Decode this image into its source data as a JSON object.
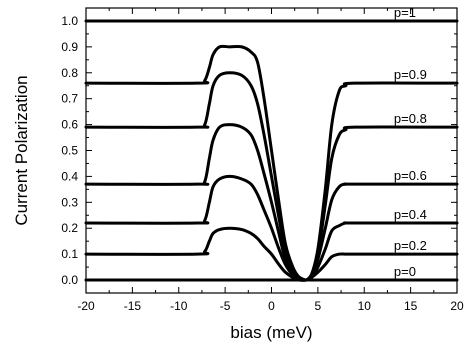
{
  "chart_data": {
    "type": "line",
    "title": "",
    "xlabel": "bias (meV)",
    "ylabel": "Current Polarization",
    "xlim": [
      -20,
      20
    ],
    "ylim": [
      -0.05,
      1.05
    ],
    "xticks": [
      -20,
      -15,
      -10,
      -5,
      0,
      5,
      10,
      15,
      20
    ],
    "xtick_labels": [
      "-20",
      "-15",
      "-10",
      "-5",
      "0",
      "5",
      "10",
      "15",
      "20"
    ],
    "yticks": [
      0.0,
      0.1,
      0.2,
      0.3,
      0.4,
      0.5,
      0.6,
      0.7,
      0.8,
      0.9,
      1.0
    ],
    "ytick_labels": [
      "0.0",
      "0.1",
      "0.2",
      "0.3",
      "0.4",
      "0.5",
      "0.6",
      "0.7",
      "0.8",
      "0.9",
      "1.0"
    ],
    "grid": false,
    "legend": "none",
    "series": [
      {
        "name": "p=1",
        "x": [
          -20,
          20
        ],
        "y": [
          1.0,
          1.0
        ]
      },
      {
        "name": "p=0.9",
        "x": [
          -20,
          -8,
          -7.2,
          -6.7,
          -6.3,
          -5.6,
          -4.5,
          -3.2,
          -2.2,
          -1.5,
          -0.8,
          0,
          0.8,
          1.5,
          2.3,
          3.0,
          3.7,
          4.3,
          5.0,
          5.8,
          6.5,
          7.3,
          8.0,
          9.0,
          20
        ],
        "y": [
          0.76,
          0.76,
          0.77,
          0.82,
          0.87,
          0.9,
          0.9,
          0.9,
          0.88,
          0.84,
          0.7,
          0.5,
          0.3,
          0.14,
          0.05,
          0.01,
          0.0,
          0.02,
          0.12,
          0.35,
          0.6,
          0.73,
          0.75,
          0.76,
          0.76
        ]
      },
      {
        "name": "p=0.8",
        "x": [
          -20,
          -8,
          -7.2,
          -6.7,
          -6.3,
          -5.6,
          -4.5,
          -3.2,
          -2.2,
          -1.5,
          -0.8,
          0,
          0.8,
          1.5,
          2.3,
          3.0,
          3.7,
          4.3,
          5.0,
          5.8,
          6.5,
          7.3,
          8.0,
          9.0,
          20
        ],
        "y": [
          0.59,
          0.59,
          0.6,
          0.68,
          0.75,
          0.79,
          0.8,
          0.79,
          0.75,
          0.68,
          0.56,
          0.4,
          0.24,
          0.11,
          0.04,
          0.01,
          0.0,
          0.02,
          0.1,
          0.29,
          0.47,
          0.56,
          0.58,
          0.59,
          0.59
        ]
      },
      {
        "name": "p=0.6",
        "x": [
          -20,
          -8,
          -7.2,
          -6.7,
          -6.3,
          -5.6,
          -4.5,
          -3.2,
          -2.2,
          -1.5,
          -0.8,
          0,
          0.8,
          1.5,
          2.3,
          3.0,
          3.7,
          4.3,
          5.0,
          5.8,
          6.5,
          7.3,
          8.0,
          9.0,
          20
        ],
        "y": [
          0.37,
          0.37,
          0.38,
          0.47,
          0.54,
          0.59,
          0.6,
          0.59,
          0.56,
          0.5,
          0.41,
          0.3,
          0.18,
          0.08,
          0.03,
          0.01,
          0.0,
          0.02,
          0.08,
          0.2,
          0.31,
          0.36,
          0.37,
          0.37,
          0.37
        ]
      },
      {
        "name": "p=0.4",
        "x": [
          -20,
          -8,
          -7.2,
          -6.7,
          -6.3,
          -5.6,
          -4.5,
          -3.2,
          -2.2,
          -1.5,
          -0.8,
          0,
          0.8,
          1.5,
          2.3,
          3.0,
          3.7,
          4.3,
          5.0,
          5.8,
          6.5,
          7.3,
          8.0,
          9.0,
          20
        ],
        "y": [
          0.22,
          0.22,
          0.23,
          0.3,
          0.36,
          0.39,
          0.4,
          0.39,
          0.37,
          0.33,
          0.27,
          0.2,
          0.12,
          0.06,
          0.02,
          0.01,
          0.0,
          0.01,
          0.05,
          0.12,
          0.19,
          0.21,
          0.22,
          0.22,
          0.22
        ]
      },
      {
        "name": "p=0.2",
        "x": [
          -20,
          -8,
          -7.2,
          -6.7,
          -6.3,
          -5.6,
          -4.5,
          -3.2,
          -2.2,
          -1.5,
          -0.8,
          0,
          0.8,
          1.5,
          2.3,
          3.0,
          3.7,
          4.3,
          5.0,
          5.8,
          6.5,
          7.3,
          8.0,
          9.0,
          20
        ],
        "y": [
          0.1,
          0.1,
          0.11,
          0.15,
          0.18,
          0.195,
          0.2,
          0.195,
          0.18,
          0.16,
          0.13,
          0.1,
          0.06,
          0.03,
          0.01,
          0.0,
          0.0,
          0.01,
          0.03,
          0.06,
          0.09,
          0.1,
          0.1,
          0.1,
          0.1
        ]
      },
      {
        "name": "p=0",
        "x": [
          -20,
          20
        ],
        "y": [
          0.0,
          0.0
        ]
      }
    ],
    "series_labels": [
      {
        "text": "p=1",
        "x": 13.2,
        "y": 1.0
      },
      {
        "text": "p=0.9",
        "x": 13.2,
        "y": 0.76
      },
      {
        "text": "p=0.8",
        "x": 13.2,
        "y": 0.59
      },
      {
        "text": "p=0.6",
        "x": 13.2,
        "y": 0.37
      },
      {
        "text": "p=0.4",
        "x": 13.2,
        "y": 0.22
      },
      {
        "text": "p=0.2",
        "x": 13.2,
        "y": 0.1
      },
      {
        "text": "p=0",
        "x": 13.2,
        "y": 0.0
      }
    ]
  }
}
